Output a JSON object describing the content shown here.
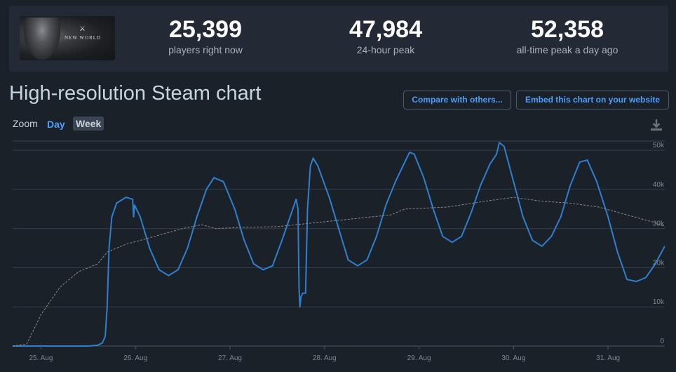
{
  "stats": [
    {
      "value": "25,399",
      "label": "players right now"
    },
    {
      "value": "47,984",
      "label": "24-hour peak"
    },
    {
      "value": "52,358",
      "label": "all-time peak a day ago"
    }
  ],
  "game_logo_text": "NEW WORLD",
  "title": "High-resolution Steam chart",
  "buttons": {
    "compare": "Compare with others...",
    "embed": "Embed this chart on your website"
  },
  "zoom": {
    "label": "Zoom",
    "day": "Day",
    "week": "Week"
  },
  "icons": {
    "download": "download-icon"
  },
  "colors": {
    "players_line": "#2f7fd0",
    "average_line": "#8a8a8a",
    "accent": "#4d9fff"
  },
  "chart_data": {
    "type": "line",
    "x_unit": "days (0 = 25 Aug)",
    "x_tick_labels": [
      "25. Aug",
      "26. Aug",
      "27. Aug",
      "28. Aug",
      "29. Aug",
      "30. Aug",
      "31. Aug"
    ],
    "x_ticks": [
      0,
      1,
      2,
      3,
      4,
      5,
      6
    ],
    "xlim": [
      -0.3,
      6.6
    ],
    "ylim": [
      0,
      52000
    ],
    "y_ticks": [
      0,
      10000,
      20000,
      30000,
      40000,
      50000
    ],
    "y_tick_labels": [
      "0",
      "10k",
      "20k",
      "30k",
      "40k",
      "50k"
    ],
    "grid": true,
    "series": [
      {
        "style": "solid",
        "points": [
          [
            -0.3,
            0
          ],
          [
            0.5,
            0
          ],
          [
            0.6,
            200
          ],
          [
            0.65,
            800
          ],
          [
            0.68,
            2500
          ],
          [
            0.7,
            10000
          ],
          [
            0.72,
            25000
          ],
          [
            0.75,
            33000
          ],
          [
            0.8,
            36500
          ],
          [
            0.9,
            38000
          ],
          [
            0.97,
            37500
          ],
          [
            0.98,
            33000
          ],
          [
            0.99,
            36000
          ],
          [
            1.05,
            33000
          ],
          [
            1.15,
            25000
          ],
          [
            1.25,
            19500
          ],
          [
            1.35,
            18000
          ],
          [
            1.45,
            19500
          ],
          [
            1.55,
            25000
          ],
          [
            1.65,
            33000
          ],
          [
            1.75,
            40000
          ],
          [
            1.83,
            43000
          ],
          [
            1.93,
            42000
          ],
          [
            2.05,
            35000
          ],
          [
            2.15,
            27000
          ],
          [
            2.25,
            21000
          ],
          [
            2.35,
            19500
          ],
          [
            2.45,
            20500
          ],
          [
            2.55,
            27000
          ],
          [
            2.65,
            34000
          ],
          [
            2.7,
            37500
          ],
          [
            2.72,
            35000
          ],
          [
            2.73,
            15000
          ],
          [
            2.74,
            10000
          ],
          [
            2.75,
            12500
          ],
          [
            2.77,
            13500
          ],
          [
            2.8,
            13500
          ],
          [
            2.82,
            35000
          ],
          [
            2.85,
            46000
          ],
          [
            2.88,
            48000
          ],
          [
            2.93,
            46000
          ],
          [
            3.05,
            38000
          ],
          [
            3.15,
            30000
          ],
          [
            3.25,
            22000
          ],
          [
            3.35,
            20500
          ],
          [
            3.45,
            22000
          ],
          [
            3.55,
            28000
          ],
          [
            3.65,
            36000
          ],
          [
            3.75,
            42000
          ],
          [
            3.85,
            47000
          ],
          [
            3.9,
            49500
          ],
          [
            3.95,
            49000
          ],
          [
            4.05,
            43000
          ],
          [
            4.15,
            35000
          ],
          [
            4.25,
            28000
          ],
          [
            4.35,
            26500
          ],
          [
            4.45,
            28000
          ],
          [
            4.55,
            34000
          ],
          [
            4.65,
            41000
          ],
          [
            4.75,
            46500
          ],
          [
            4.82,
            49000
          ],
          [
            4.85,
            52000
          ],
          [
            4.9,
            51000
          ],
          [
            5.0,
            42000
          ],
          [
            5.1,
            33000
          ],
          [
            5.2,
            27000
          ],
          [
            5.3,
            25500
          ],
          [
            5.4,
            28000
          ],
          [
            5.5,
            33000
          ],
          [
            5.6,
            41000
          ],
          [
            5.7,
            47000
          ],
          [
            5.78,
            47500
          ],
          [
            5.88,
            42000
          ],
          [
            6.0,
            33000
          ],
          [
            6.1,
            24000
          ],
          [
            6.2,
            17000
          ],
          [
            6.3,
            16500
          ],
          [
            6.4,
            17500
          ],
          [
            6.5,
            21000
          ],
          [
            6.6,
            25500
          ]
        ]
      },
      {
        "style": "dashed",
        "points": [
          [
            -0.3,
            0
          ],
          [
            -0.15,
            500
          ],
          [
            0,
            8000
          ],
          [
            0.2,
            15000
          ],
          [
            0.4,
            19000
          ],
          [
            0.6,
            21000
          ],
          [
            0.7,
            24000
          ],
          [
            0.9,
            26000
          ],
          [
            1.2,
            28000
          ],
          [
            1.5,
            30000
          ],
          [
            1.7,
            31000
          ],
          [
            1.85,
            30000
          ],
          [
            2.1,
            30300
          ],
          [
            2.5,
            30500
          ],
          [
            2.9,
            31500
          ],
          [
            3.3,
            32500
          ],
          [
            3.7,
            33500
          ],
          [
            3.85,
            35000
          ],
          [
            4.3,
            35500
          ],
          [
            4.7,
            37000
          ],
          [
            5.0,
            38000
          ],
          [
            5.3,
            37000
          ],
          [
            5.6,
            36500
          ],
          [
            5.9,
            35500
          ],
          [
            6.2,
            33500
          ],
          [
            6.5,
            31500
          ],
          [
            6.6,
            30500
          ]
        ]
      }
    ]
  }
}
